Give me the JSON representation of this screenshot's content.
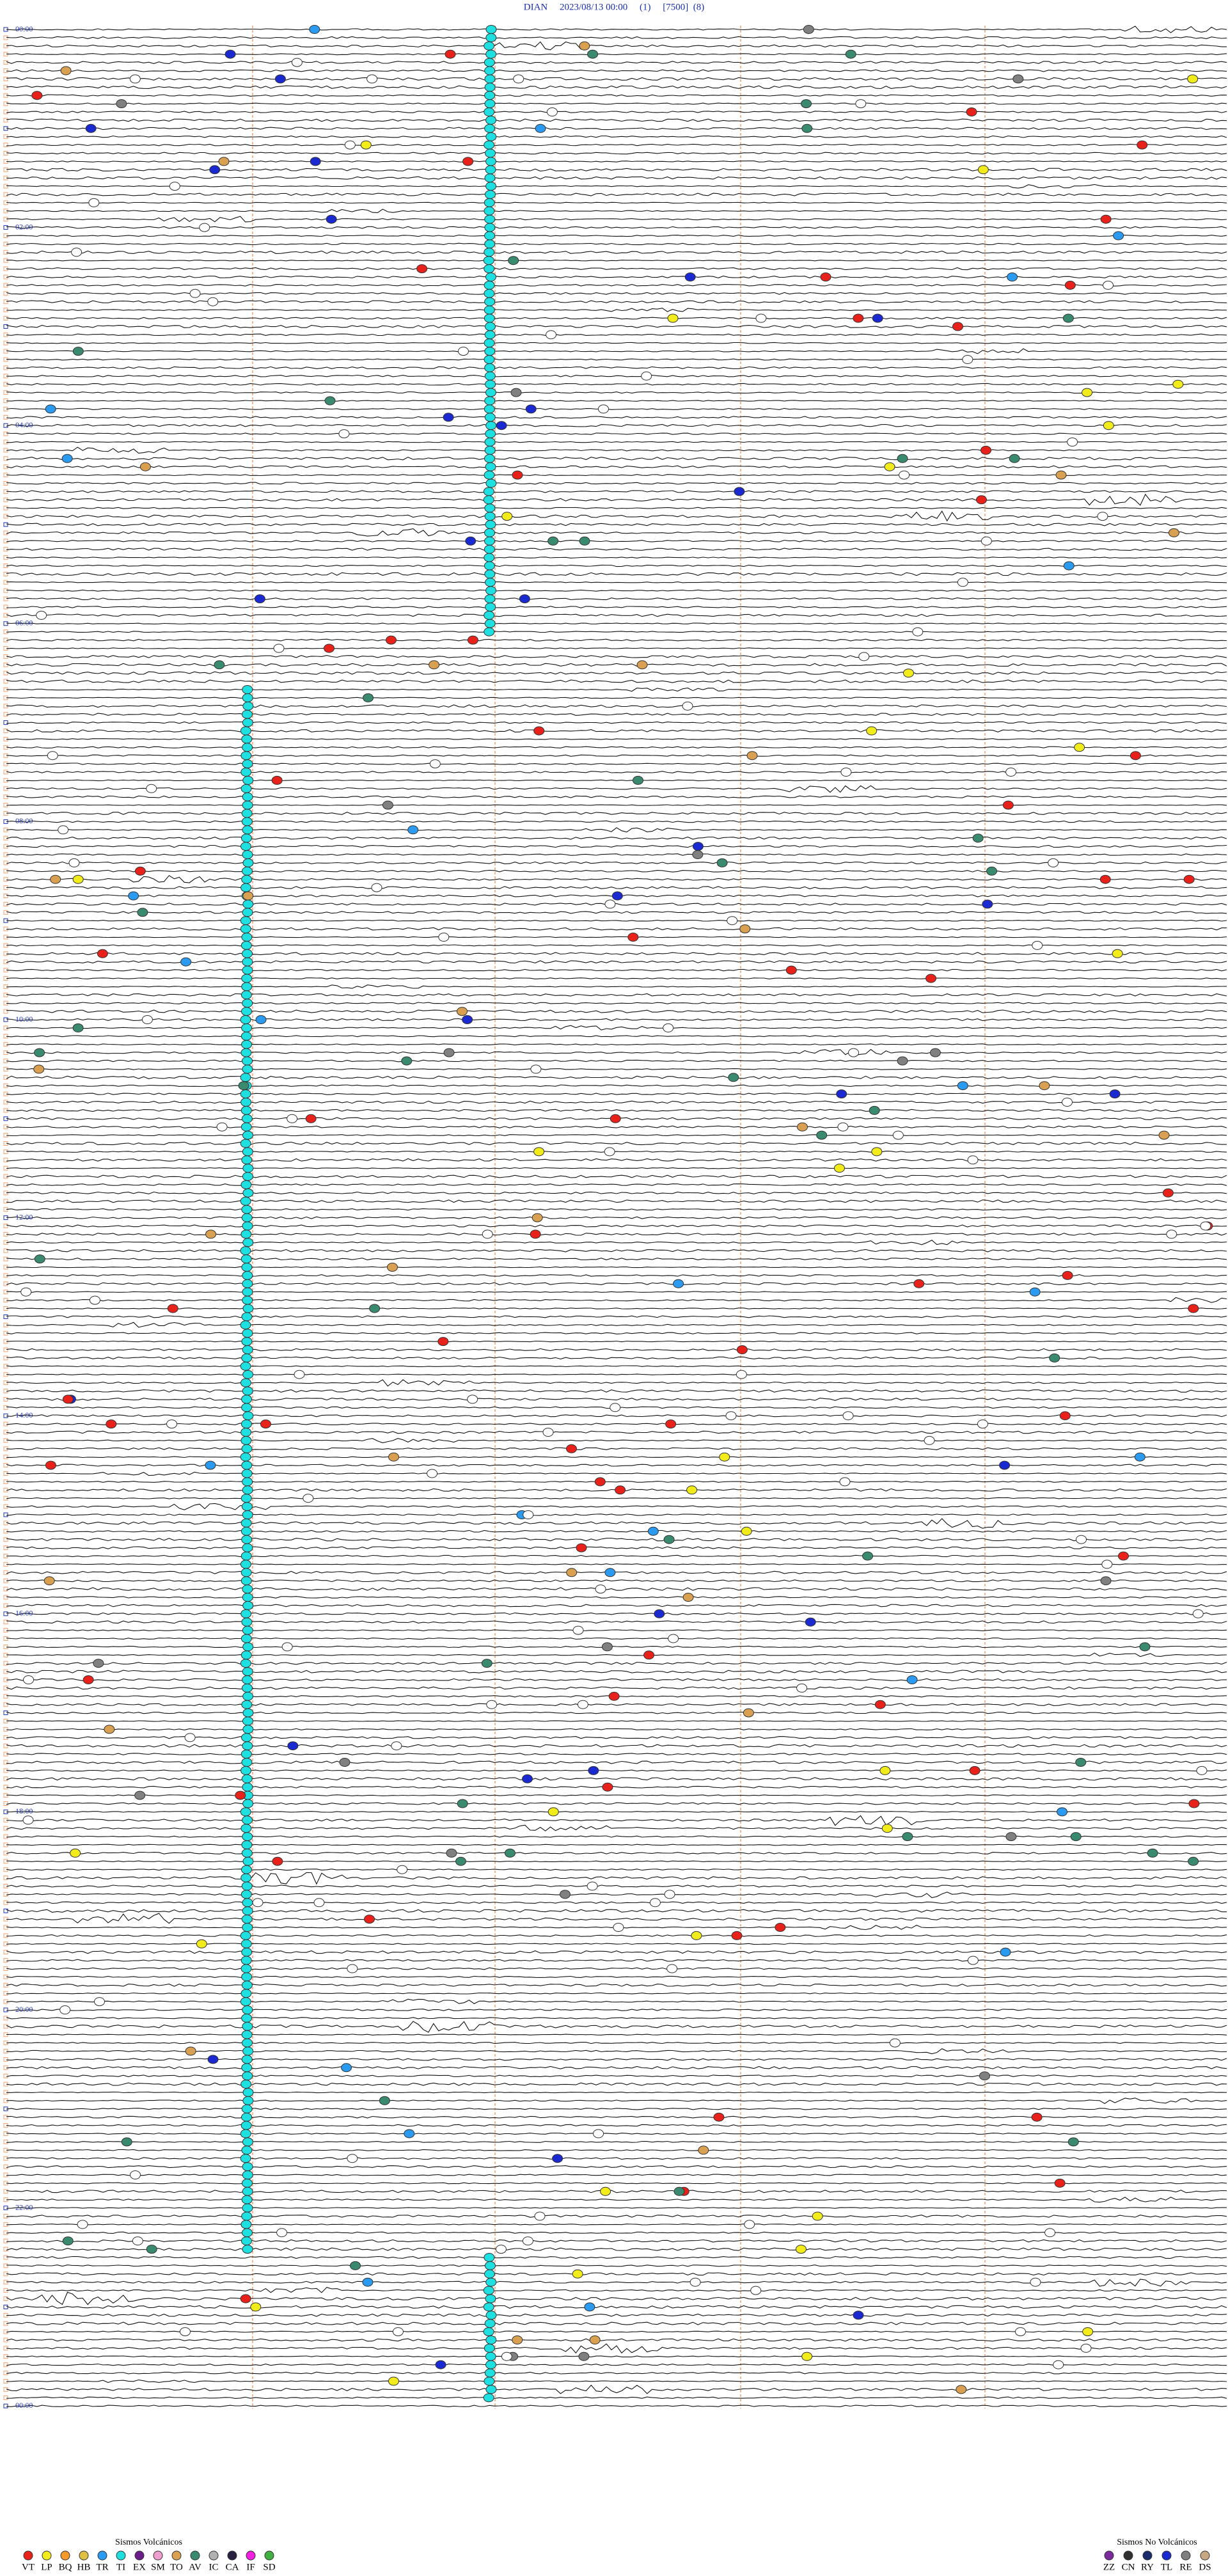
{
  "header": {
    "title": "DIAN     2023/08/13 00:00     (1)     [7500]  (8)"
  },
  "hour_labels": [
    "00:00",
    "02:00",
    "04:00",
    "06:00",
    "08:00",
    "10:00",
    "12:00",
    "14:00",
    "16:00",
    "18:00",
    "20:00",
    "22:00",
    "00:00"
  ],
  "legend": {
    "volcanic": {
      "title": "Sismos Volcánicos",
      "items": [
        {
          "code": "VT",
          "color": "#e8221b"
        },
        {
          "code": "LP",
          "color": "#f2ec1a"
        },
        {
          "code": "BQ",
          "color": "#f39a2a"
        },
        {
          "code": "HB",
          "color": "#e0c040"
        },
        {
          "code": "TR",
          "color": "#2a9bf0"
        },
        {
          "code": "TI",
          "color": "#1fe0e0"
        },
        {
          "code": "EX",
          "color": "#6a1c8a"
        },
        {
          "code": "SM",
          "color": "#f0a0d0"
        },
        {
          "code": "TO",
          "color": "#d8a050"
        },
        {
          "code": "AV",
          "color": "#3a8a70"
        },
        {
          "code": "IC",
          "color": "#b0b0b0"
        },
        {
          "code": "CA",
          "color": "#2a2040"
        },
        {
          "code": "IF",
          "color": "#f020e0"
        },
        {
          "code": "SD",
          "color": "#40b040"
        }
      ]
    },
    "non_volcanic": {
      "title": "Sismos No Volcánicos",
      "items": [
        {
          "code": "ZZ",
          "color": "#7a2a9a"
        },
        {
          "code": "CN",
          "color": "#303030"
        },
        {
          "code": "RY",
          "color": "#1a2a6a"
        },
        {
          "code": "TL",
          "color": "#1a2ad0"
        },
        {
          "code": "RE",
          "color": "#808080"
        },
        {
          "code": "DS",
          "color": "#c8a880"
        }
      ]
    }
  }
}
